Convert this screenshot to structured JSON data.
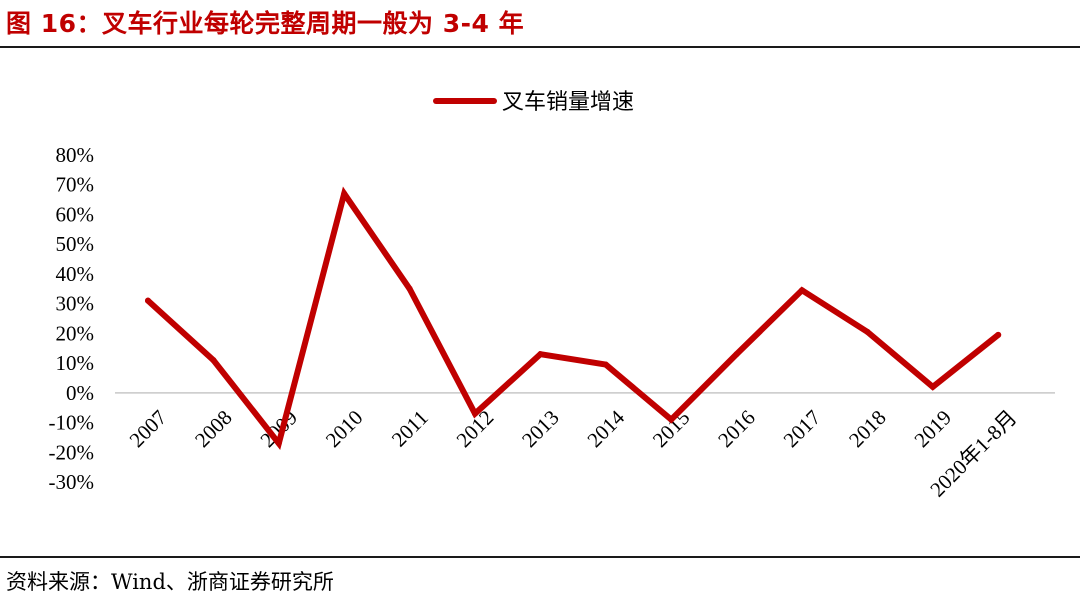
{
  "figure": {
    "title": "图 16：叉车行业每轮完整周期一般为 3-4 年",
    "source": "资料来源：Wind、浙商证券研究所"
  },
  "chart_data": {
    "type": "line",
    "categories": [
      "2007",
      "2008",
      "2009",
      "2010",
      "2011",
      "2012",
      "2013",
      "2014",
      "2015",
      "2016",
      "2017",
      "2018",
      "2019",
      "2020年1-8月"
    ],
    "series": [
      {
        "name": "叉车销量增速",
        "color": "#c00000",
        "values": [
          31,
          11,
          -17,
          67,
          35,
          -7,
          13,
          9.5,
          -9,
          13,
          34.5,
          20.5,
          2,
          19.5
        ]
      }
    ],
    "y_ticks": [
      "80%",
      "70%",
      "60%",
      "50%",
      "40%",
      "30%",
      "20%",
      "10%",
      "0%",
      "-10%",
      "-20%",
      "-30%"
    ],
    "ylim": [
      -30,
      80
    ],
    "y_unit": "%",
    "legend_position": "top-center",
    "grid": false
  }
}
